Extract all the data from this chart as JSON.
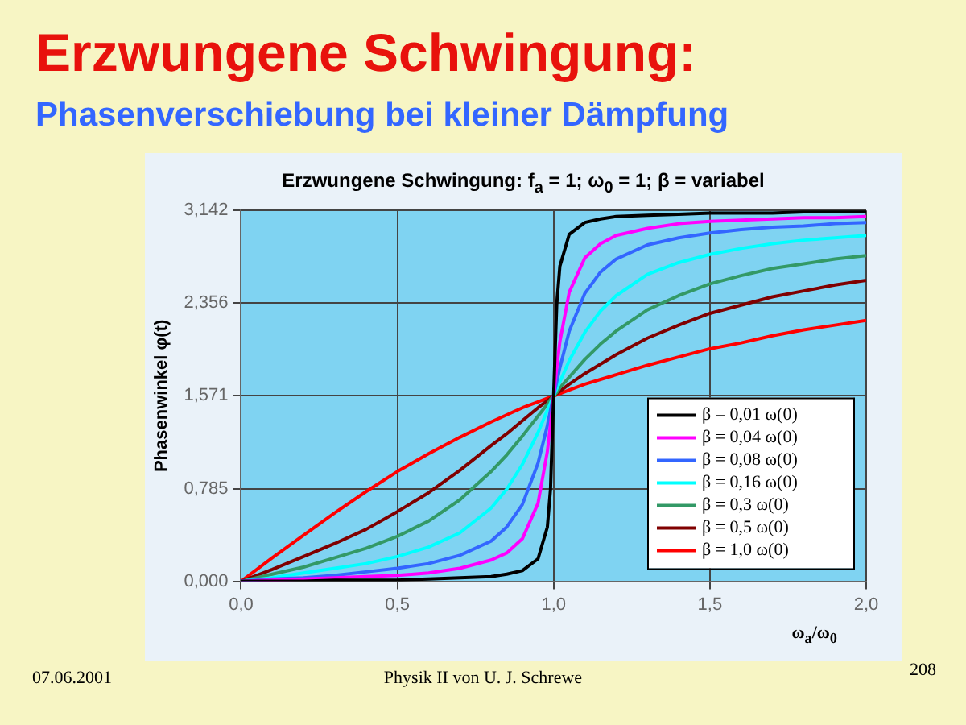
{
  "chart_data": {
    "type": "line",
    "title": "Erzwungene Schwingung:",
    "subtitle": "Phasenverschiebung bei kleiner Dämpfung",
    "annotations": [
      "Erzwungene Schwingung: f$_{a}$ = 1; ω$_{0}$ = 1; β = variabel",
      "07.06.2001",
      "Physik II von U. J. Schrewe",
      "208"
    ],
    "xlabel": "ω$_{a}$/ω$_{0}$",
    "ylabel": "Phasenwinkel φ(t)",
    "x": [
      0,
      0.1,
      0.2,
      0.3,
      0.4,
      0.5,
      0.6,
      0.7,
      0.8,
      0.85,
      0.9,
      0.95,
      0.98,
      0.99,
      1,
      1.01,
      1.02,
      1.05,
      1.1,
      1.15,
      1.2,
      1.3,
      1.4,
      1.5,
      1.6,
      1.7,
      1.8,
      1.9,
      2
    ],
    "series": [
      {
        "name": "β = 0,01 ω(0)",
        "color": "#000000",
        "values": [
          0,
          0,
          0,
          0.01,
          0.01,
          0.01,
          0.02,
          0.03,
          0.04,
          0.06,
          0.09,
          0.19,
          0.46,
          0.78,
          1.57,
          2.35,
          2.67,
          2.94,
          3.04,
          3.07,
          3.09,
          3.1,
          3.11,
          3.12,
          3.12,
          3.12,
          3.13,
          3.13,
          3.13
        ]
      },
      {
        "name": "β = 0,04 ω(0)",
        "color": "#ff00ff",
        "values": [
          0,
          0.01,
          0.02,
          0.03,
          0.04,
          0.05,
          0.07,
          0.11,
          0.18,
          0.24,
          0.36,
          0.66,
          1.1,
          1.33,
          1.57,
          1.81,
          2.03,
          2.45,
          2.74,
          2.86,
          2.93,
          2.99,
          3.03,
          3.05,
          3.06,
          3.07,
          3.08,
          3.08,
          3.09
        ]
      },
      {
        "name": "β = 0,08 ω(0)",
        "color": "#3366ff",
        "values": [
          0,
          0.02,
          0.03,
          0.05,
          0.08,
          0.11,
          0.15,
          0.22,
          0.34,
          0.46,
          0.65,
          1.0,
          1.32,
          1.45,
          1.57,
          1.69,
          1.81,
          2.12,
          2.44,
          2.62,
          2.73,
          2.85,
          2.91,
          2.95,
          2.98,
          3.0,
          3.01,
          3.03,
          3.04
        ]
      },
      {
        "name": "β = 0,16 ω(0)",
        "color": "#00ffff",
        "values": [
          0,
          0.03,
          0.07,
          0.11,
          0.15,
          0.21,
          0.29,
          0.41,
          0.62,
          0.78,
          0.99,
          1.26,
          1.45,
          1.51,
          1.57,
          1.63,
          1.69,
          1.87,
          2.11,
          2.29,
          2.42,
          2.6,
          2.7,
          2.77,
          2.82,
          2.86,
          2.89,
          2.91,
          2.93
        ]
      },
      {
        "name": "β = 0,3 ω(0)",
        "color": "#339966",
        "values": [
          0,
          0.06,
          0.12,
          0.2,
          0.28,
          0.38,
          0.51,
          0.69,
          0.93,
          1.07,
          1.23,
          1.4,
          1.5,
          1.54,
          1.57,
          1.6,
          1.64,
          1.73,
          1.88,
          2.01,
          2.12,
          2.3,
          2.42,
          2.52,
          2.59,
          2.65,
          2.69,
          2.73,
          2.76
        ]
      },
      {
        "name": "β = 0,5 ω(0)",
        "color": "#800000",
        "values": [
          0,
          0.1,
          0.21,
          0.32,
          0.44,
          0.59,
          0.75,
          0.94,
          1.15,
          1.25,
          1.36,
          1.47,
          1.53,
          1.55,
          1.57,
          1.59,
          1.61,
          1.67,
          1.76,
          1.84,
          1.92,
          2.06,
          2.17,
          2.27,
          2.34,
          2.41,
          2.46,
          2.51,
          2.55
        ]
      },
      {
        "name": "β = 1,0 ω(0)",
        "color": "#ff0000",
        "values": [
          0,
          0.2,
          0.39,
          0.58,
          0.76,
          0.93,
          1.08,
          1.22,
          1.35,
          1.41,
          1.47,
          1.52,
          1.55,
          1.56,
          1.57,
          1.58,
          1.59,
          1.62,
          1.67,
          1.71,
          1.75,
          1.83,
          1.9,
          1.97,
          2.02,
          2.08,
          2.13,
          2.17,
          2.21
        ]
      }
    ],
    "xlim": [
      0,
      2
    ],
    "xticks": [
      {
        "value": 0,
        "label": "0,0"
      },
      {
        "value": 0.5,
        "label": "0,5"
      },
      {
        "value": 1,
        "label": "1,0"
      },
      {
        "value": 1.5,
        "label": "1,5"
      },
      {
        "value": 2,
        "label": "2,0"
      }
    ],
    "ylim": [
      0,
      3.142
    ],
    "yticks": [
      {
        "value": 0,
        "label": "0,000"
      },
      {
        "value": 0.785,
        "label": "0,785"
      },
      {
        "value": 1.571,
        "label": "1,571"
      },
      {
        "value": 2.356,
        "label": "2,356"
      },
      {
        "value": 3.142,
        "label": "3,142"
      }
    ],
    "grid": true,
    "legend": "bottom right",
    "marker": "none",
    "line_style": "solid"
  }
}
